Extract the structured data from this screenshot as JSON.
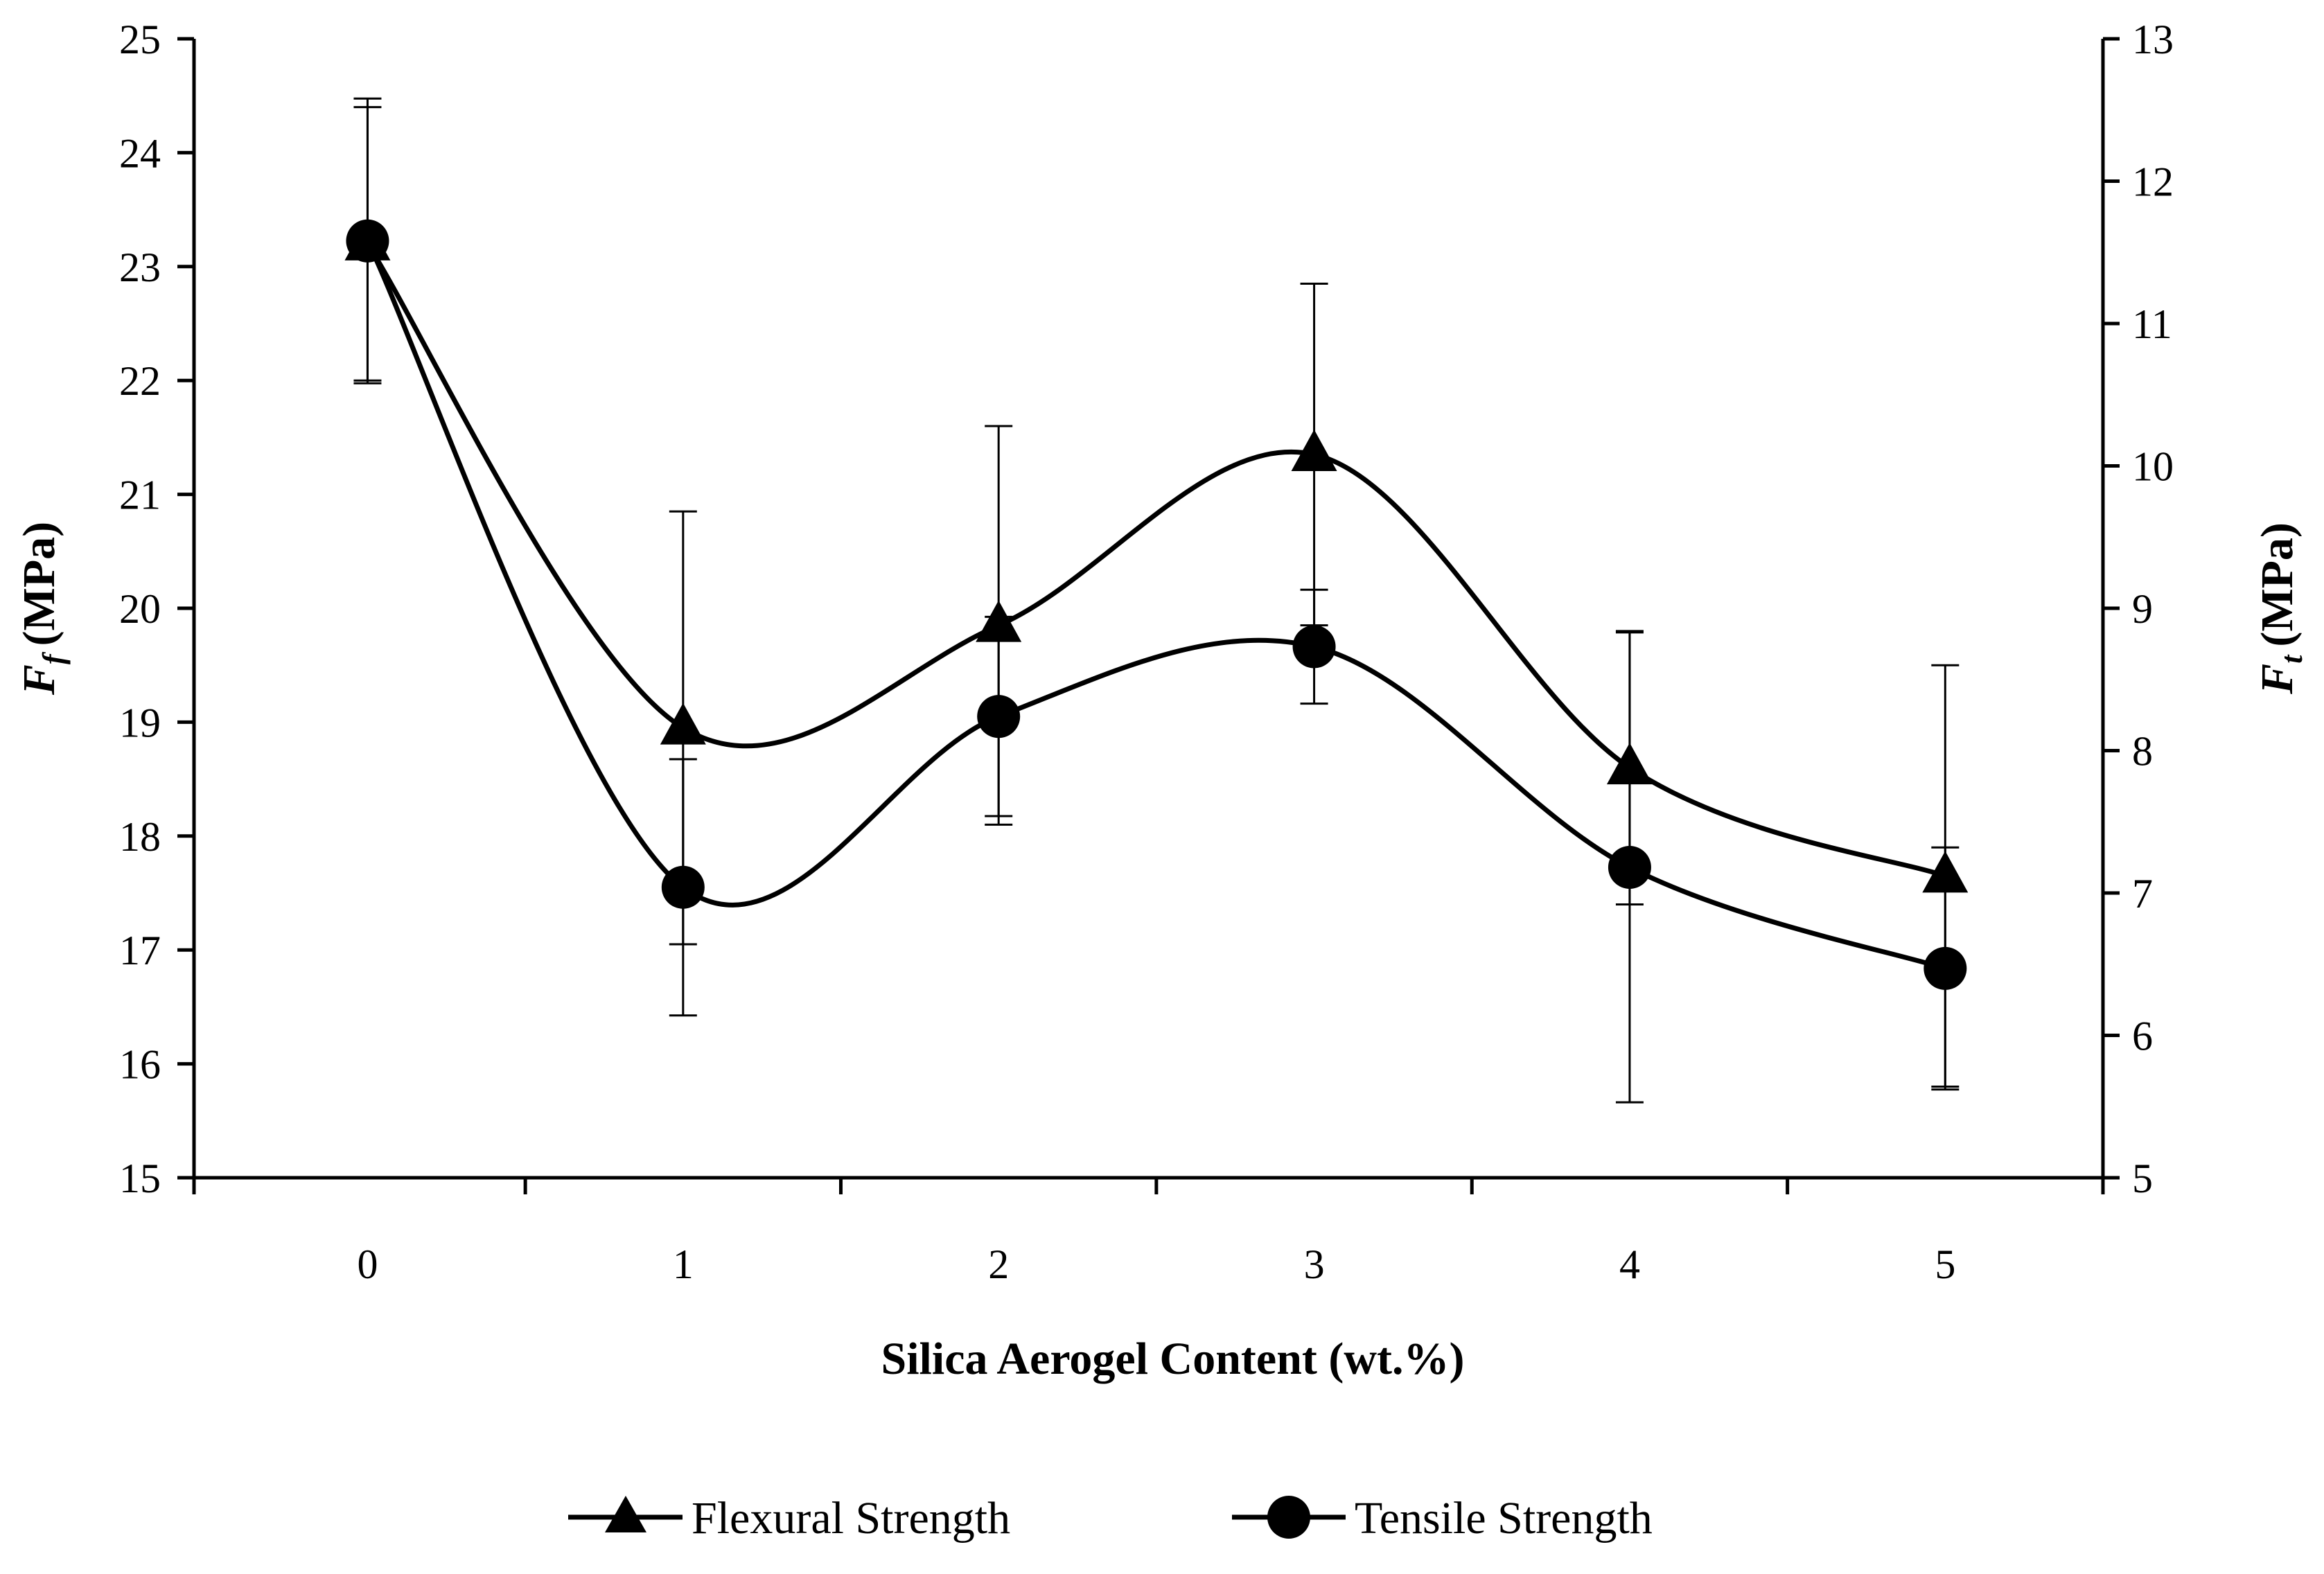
{
  "chart_data": {
    "type": "line",
    "title": "",
    "xlabel": "Silica Aerogel Content (wt.%)",
    "ylabel_left": {
      "symbol": "F",
      "subscript": "f",
      "unit": "(MPa)"
    },
    "ylabel_right": {
      "symbol": "F",
      "subscript": "t",
      "unit": "(MPa)"
    },
    "x": [
      0,
      1,
      2,
      3,
      4,
      5
    ],
    "xlim": [
      -0.55,
      5.5
    ],
    "ylim_left": [
      15,
      25
    ],
    "ylim_right": [
      5,
      13
    ],
    "x_ticks": [
      0,
      1,
      2,
      3,
      4,
      5
    ],
    "y_ticks_left": [
      15,
      16,
      17,
      18,
      19,
      20,
      21,
      22,
      23,
      24,
      25
    ],
    "y_ticks_right": [
      5,
      6,
      7,
      8,
      9,
      10,
      11,
      12,
      13
    ],
    "grid": false,
    "legend_position": "bottom",
    "series": [
      {
        "name": "Flexural Strength",
        "axis": "left",
        "marker": "triangle",
        "values": [
          23.2,
          18.95,
          19.85,
          21.35,
          18.6,
          17.65
        ],
        "error": [
          1.2,
          1.9,
          1.75,
          1.5,
          1.2,
          1.85
        ]
      },
      {
        "name": "Tensile Strength",
        "axis": "right",
        "marker": "circle",
        "values": [
          11.58,
          7.04,
          8.24,
          8.73,
          7.18,
          6.47
        ],
        "error": [
          1.0,
          0.9,
          0.7,
          0.4,
          1.65,
          0.85
        ]
      }
    ]
  }
}
